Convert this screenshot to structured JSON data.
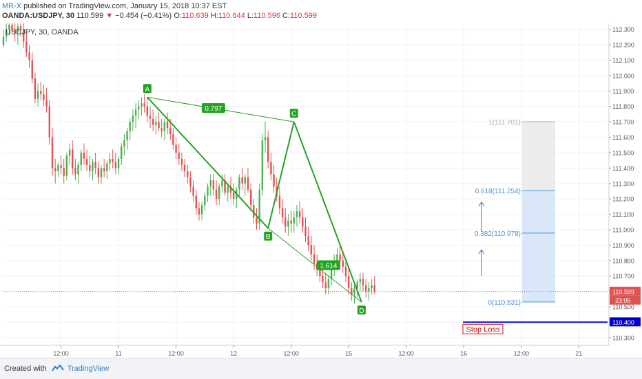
{
  "header": {
    "author": "MR-X",
    "published": " published on TradingView.com, January 15, 2018 10:37 EST",
    "symbol": "OANDA:USDJPY, 30",
    "price": "110.599",
    "arrow": "▼",
    "change": "−0.454 (−0.41%)",
    "o_label": "O:",
    "o": "110.639",
    "h_label": "H:",
    "h": "110.644",
    "l_label": "L:",
    "l": "110.596",
    "c_label": "C:",
    "c": "110.599"
  },
  "footer": {
    "created": "Created with",
    "brand": "TradingView"
  },
  "colors": {
    "bull": "#4caf50",
    "bear": "#e05252",
    "pattern": "#22a322",
    "fib": "#4a90d9",
    "fib_fill": "#d9e7f8",
    "target_fill": "#ececec",
    "stop": "#0000cc",
    "stop_label": "#cc0000",
    "last_price": "#e05252"
  },
  "chart_data": {
    "type": "candlestick",
    "legend": "USDJPY, 30, OANDA",
    "x_ticks": [
      "12:00",
      "11",
      "12:00",
      "12",
      "12:00",
      "15",
      "12:00",
      "16",
      "12:00",
      "21"
    ],
    "x_tick_t": [
      2,
      4,
      6,
      8,
      10,
      12,
      14,
      16,
      18,
      20
    ],
    "y_ticks": [
      "112.300",
      "112.200",
      "112.100",
      "112.000",
      "111.900",
      "111.800",
      "111.700",
      "111.600",
      "111.500",
      "111.400",
      "111.300",
      "111.200",
      "111.100",
      "111.000",
      "110.900",
      "110.800",
      "110.700",
      "110.600",
      "110.500",
      "110.400",
      "110.300"
    ],
    "ylim": [
      110.25,
      112.33
    ],
    "xlim": [
      0,
      21
    ],
    "candles": [
      [
        0.0,
        112.2,
        112.3,
        112.18,
        112.25
      ],
      [
        0.1,
        112.25,
        112.35,
        112.22,
        112.3
      ],
      [
        0.2,
        112.3,
        112.38,
        112.26,
        112.33
      ],
      [
        0.3,
        112.33,
        112.4,
        112.28,
        112.3
      ],
      [
        0.4,
        112.3,
        112.36,
        112.22,
        112.28
      ],
      [
        0.5,
        112.28,
        112.34,
        112.2,
        112.32
      ],
      [
        0.6,
        112.32,
        112.38,
        112.25,
        112.3
      ],
      [
        0.7,
        112.3,
        112.34,
        112.18,
        112.22
      ],
      [
        0.8,
        112.22,
        112.28,
        112.12,
        112.15
      ],
      [
        0.9,
        112.15,
        112.2,
        112.05,
        112.1
      ],
      [
        1.0,
        112.1,
        112.15,
        111.95,
        111.98
      ],
      [
        1.1,
        111.98,
        112.02,
        111.82,
        111.85
      ],
      [
        1.2,
        111.85,
        111.95,
        111.8,
        111.9
      ],
      [
        1.3,
        111.9,
        111.96,
        111.84,
        111.88
      ],
      [
        1.4,
        111.88,
        111.94,
        111.8,
        111.84
      ],
      [
        1.5,
        111.84,
        111.92,
        111.76,
        111.8
      ],
      [
        1.6,
        111.8,
        111.84,
        111.55,
        111.6
      ],
      [
        1.7,
        111.6,
        111.66,
        111.35,
        111.4
      ],
      [
        1.8,
        111.4,
        111.46,
        111.3,
        111.38
      ],
      [
        1.9,
        111.38,
        111.44,
        111.34,
        111.42
      ],
      [
        2.0,
        111.42,
        111.48,
        111.36,
        111.4
      ],
      [
        2.1,
        111.4,
        111.46,
        111.3,
        111.35
      ],
      [
        2.2,
        111.35,
        111.5,
        111.32,
        111.48
      ],
      [
        2.3,
        111.48,
        111.56,
        111.42,
        111.52
      ],
      [
        2.4,
        111.52,
        111.58,
        111.36,
        111.4
      ],
      [
        2.5,
        111.4,
        111.46,
        111.32,
        111.36
      ],
      [
        2.6,
        111.36,
        111.44,
        111.3,
        111.42
      ],
      [
        2.7,
        111.42,
        111.52,
        111.38,
        111.5
      ],
      [
        2.8,
        111.5,
        111.56,
        111.42,
        111.46
      ],
      [
        2.9,
        111.46,
        111.52,
        111.38,
        111.42
      ],
      [
        3.0,
        111.42,
        111.48,
        111.34,
        111.38
      ],
      [
        3.1,
        111.38,
        111.46,
        111.32,
        111.44
      ],
      [
        3.2,
        111.44,
        111.5,
        111.36,
        111.4
      ],
      [
        3.3,
        111.4,
        111.44,
        111.3,
        111.34
      ],
      [
        3.4,
        111.34,
        111.42,
        111.3,
        111.4
      ],
      [
        3.5,
        111.4,
        111.46,
        111.34,
        111.38
      ],
      [
        3.6,
        111.38,
        111.45,
        111.33,
        111.43
      ],
      [
        3.7,
        111.43,
        111.5,
        111.38,
        111.46
      ],
      [
        3.8,
        111.46,
        111.52,
        111.4,
        111.44
      ],
      [
        3.9,
        111.44,
        111.5,
        111.36,
        111.4
      ],
      [
        4.0,
        111.4,
        111.48,
        111.36,
        111.46
      ],
      [
        4.1,
        111.46,
        111.56,
        111.42,
        111.54
      ],
      [
        4.2,
        111.54,
        111.62,
        111.48,
        111.58
      ],
      [
        4.3,
        111.58,
        111.66,
        111.52,
        111.64
      ],
      [
        4.4,
        111.64,
        111.72,
        111.58,
        111.7
      ],
      [
        4.5,
        111.7,
        111.78,
        111.64,
        111.74
      ],
      [
        4.6,
        111.74,
        111.82,
        111.66,
        111.78
      ],
      [
        4.7,
        111.78,
        111.84,
        111.72,
        111.8
      ],
      [
        4.8,
        111.8,
        111.86,
        111.74,
        111.82
      ],
      [
        4.9,
        111.82,
        111.88,
        111.76,
        111.8
      ],
      [
        5.0,
        111.8,
        111.86,
        111.7,
        111.74
      ],
      [
        5.1,
        111.74,
        111.8,
        111.66,
        111.72
      ],
      [
        5.2,
        111.72,
        111.78,
        111.64,
        111.68
      ],
      [
        5.3,
        111.68,
        111.74,
        111.62,
        111.7
      ],
      [
        5.4,
        111.7,
        111.76,
        111.64,
        111.66
      ],
      [
        5.5,
        111.66,
        111.72,
        111.6,
        111.64
      ],
      [
        5.6,
        111.64,
        111.72,
        111.58,
        111.7
      ],
      [
        5.7,
        111.7,
        111.76,
        111.62,
        111.66
      ],
      [
        5.8,
        111.66,
        111.72,
        111.58,
        111.62
      ],
      [
        5.9,
        111.62,
        111.66,
        111.52,
        111.55
      ],
      [
        6.0,
        111.55,
        111.6,
        111.46,
        111.5
      ],
      [
        6.1,
        111.5,
        111.56,
        111.42,
        111.46
      ],
      [
        6.2,
        111.46,
        111.5,
        111.38,
        111.42
      ],
      [
        6.3,
        111.42,
        111.46,
        111.34,
        111.38
      ],
      [
        6.4,
        111.38,
        111.42,
        111.3,
        111.34
      ],
      [
        6.5,
        111.34,
        111.38,
        111.24,
        111.28
      ],
      [
        6.6,
        111.28,
        111.32,
        111.18,
        111.22
      ],
      [
        6.7,
        111.22,
        111.26,
        111.1,
        111.14
      ],
      [
        6.8,
        111.14,
        111.18,
        111.06,
        111.1
      ],
      [
        6.9,
        111.1,
        111.18,
        111.06,
        111.16
      ],
      [
        7.0,
        111.16,
        111.24,
        111.12,
        111.22
      ],
      [
        7.1,
        111.22,
        111.3,
        111.18,
        111.28
      ],
      [
        7.2,
        111.28,
        111.36,
        111.22,
        111.32
      ],
      [
        7.3,
        111.32,
        111.36,
        111.22,
        111.26
      ],
      [
        7.4,
        111.26,
        111.32,
        111.16,
        111.2
      ],
      [
        7.5,
        111.2,
        111.3,
        111.16,
        111.28
      ],
      [
        7.6,
        111.28,
        111.36,
        111.24,
        111.32
      ],
      [
        7.7,
        111.32,
        111.36,
        111.22,
        111.24
      ],
      [
        7.8,
        111.24,
        111.3,
        111.18,
        111.28
      ],
      [
        7.9,
        111.28,
        111.34,
        111.2,
        111.24
      ],
      [
        8.0,
        111.24,
        111.3,
        111.16,
        111.2
      ],
      [
        8.1,
        111.2,
        111.28,
        111.14,
        111.26
      ],
      [
        8.2,
        111.26,
        111.36,
        111.22,
        111.34
      ],
      [
        8.3,
        111.34,
        111.4,
        111.26,
        111.3
      ],
      [
        8.4,
        111.3,
        111.36,
        111.22,
        111.34
      ],
      [
        8.5,
        111.34,
        111.4,
        111.24,
        111.26
      ],
      [
        8.6,
        111.26,
        111.3,
        111.12,
        111.16
      ],
      [
        8.7,
        111.16,
        111.2,
        111.04,
        111.08
      ],
      [
        8.8,
        111.08,
        111.14,
        111.0,
        111.04
      ],
      [
        8.9,
        111.04,
        111.3,
        111.0,
        111.26
      ],
      [
        9.0,
        111.26,
        111.62,
        111.22,
        111.58
      ],
      [
        9.1,
        111.58,
        111.7,
        111.5,
        111.6
      ],
      [
        9.2,
        111.6,
        111.64,
        111.4,
        111.44
      ],
      [
        9.3,
        111.44,
        111.5,
        111.32,
        111.36
      ],
      [
        9.4,
        111.36,
        111.42,
        111.24,
        111.28
      ],
      [
        9.5,
        111.28,
        111.34,
        111.18,
        111.22
      ],
      [
        9.6,
        111.22,
        111.28,
        111.1,
        111.14
      ],
      [
        9.7,
        111.14,
        111.2,
        111.04,
        111.08
      ],
      [
        9.8,
        111.08,
        111.14,
        110.98,
        111.02
      ],
      [
        9.9,
        111.02,
        111.1,
        110.96,
        111.06
      ],
      [
        10.0,
        111.06,
        111.12,
        110.98,
        111.04
      ],
      [
        10.1,
        111.04,
        111.12,
        110.98,
        111.08
      ],
      [
        10.2,
        111.08,
        111.16,
        111.02,
        111.12
      ],
      [
        10.3,
        111.12,
        111.18,
        111.04,
        111.08
      ],
      [
        10.4,
        111.08,
        111.14,
        110.98,
        111.02
      ],
      [
        10.5,
        111.02,
        111.08,
        110.92,
        110.96
      ],
      [
        10.6,
        110.96,
        111.02,
        110.86,
        110.9
      ],
      [
        10.7,
        110.9,
        110.96,
        110.8,
        110.84
      ],
      [
        10.8,
        110.84,
        110.9,
        110.74,
        110.78
      ],
      [
        10.9,
        110.78,
        110.84,
        110.7,
        110.74
      ],
      [
        11.0,
        110.74,
        110.8,
        110.66,
        110.7
      ],
      [
        11.1,
        110.7,
        110.76,
        110.62,
        110.66
      ],
      [
        11.2,
        110.66,
        110.72,
        110.58,
        110.62
      ],
      [
        11.3,
        110.62,
        110.7,
        110.58,
        110.68
      ],
      [
        11.4,
        110.68,
        110.78,
        110.64,
        110.76
      ],
      [
        11.5,
        110.76,
        110.84,
        110.7,
        110.8
      ],
      [
        11.6,
        110.8,
        110.88,
        110.74,
        110.84
      ],
      [
        11.7,
        110.84,
        110.9,
        110.76,
        110.8
      ],
      [
        11.8,
        110.8,
        110.86,
        110.72,
        110.76
      ],
      [
        11.9,
        110.76,
        110.8,
        110.66,
        110.7
      ],
      [
        12.0,
        110.7,
        110.74,
        110.58,
        110.62
      ],
      [
        12.1,
        110.62,
        110.66,
        110.54,
        110.58
      ],
      [
        12.2,
        110.58,
        110.64,
        110.52,
        110.62
      ],
      [
        12.3,
        110.62,
        110.68,
        110.56,
        110.66
      ],
      [
        12.4,
        110.66,
        110.72,
        110.6,
        110.68
      ],
      [
        12.5,
        110.68,
        110.72,
        110.6,
        110.64
      ],
      [
        12.6,
        110.64,
        110.68,
        110.56,
        110.6
      ],
      [
        12.7,
        110.6,
        110.66,
        110.54,
        110.62
      ],
      [
        12.8,
        110.62,
        110.68,
        110.58,
        110.64
      ],
      [
        12.9,
        110.64,
        110.7,
        110.58,
        110.6
      ]
    ],
    "pattern_points": [
      {
        "label": "A",
        "t": 5.0,
        "y": 111.86,
        "pos": "above"
      },
      {
        "label": "B",
        "t": 9.2,
        "y": 111.01,
        "pos": "below"
      },
      {
        "label": "C",
        "t": 10.1,
        "y": 111.7,
        "pos": "above"
      },
      {
        "label": "D",
        "t": 12.45,
        "y": 110.53,
        "pos": "below"
      }
    ],
    "ratios": [
      {
        "text": "0.797",
        "t": 7.3,
        "y": 111.79
      },
      {
        "text": "1.614",
        "t": 11.3,
        "y": 110.77
      }
    ],
    "fib_levels": [
      {
        "label": "1(111.701)",
        "value": 111.701,
        "muted": true
      },
      {
        "label": "0.618(111.254)",
        "value": 111.254
      },
      {
        "label": "0.382(110.978)",
        "value": 110.978
      },
      {
        "label": "0(110.531)",
        "value": 110.531
      }
    ],
    "stop_loss": {
      "label": "Stop Loss",
      "value": 110.4,
      "value_text": "110.400"
    },
    "last_price": {
      "value": 110.599,
      "value_text": "110.599",
      "countdown": "23:05"
    }
  }
}
